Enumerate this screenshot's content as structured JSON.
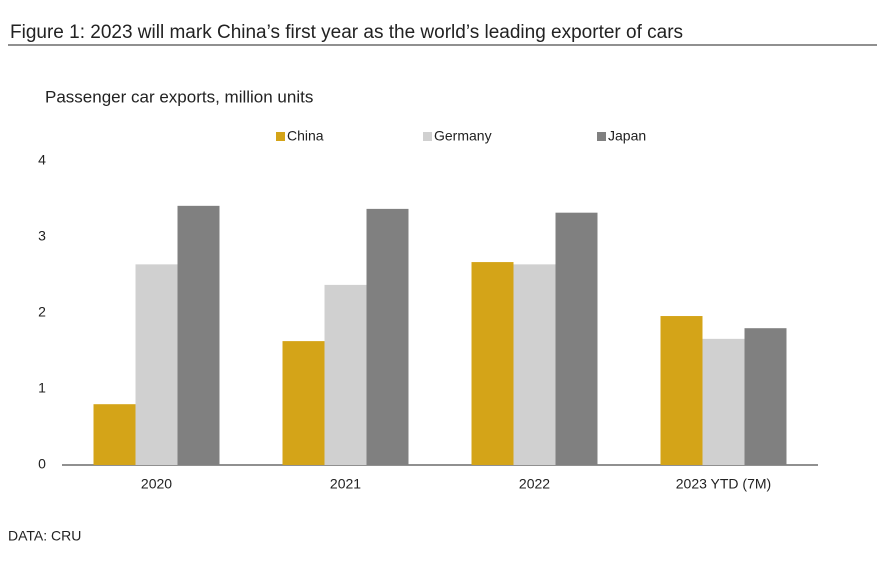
{
  "figure_title": "Figure 1: 2023 will mark China’s first year as the world’s leading exporter of cars",
  "chart_data": {
    "type": "bar",
    "title": "Passenger car exports, million units",
    "categories": [
      "2020",
      "2021",
      "2022",
      "2023 YTD (7M)"
    ],
    "series": [
      {
        "name": "China",
        "color": "#d4a418",
        "values": [
          0.8,
          1.63,
          2.67,
          1.96
        ]
      },
      {
        "name": "Germany",
        "color": "#d0d0d0",
        "values": [
          2.64,
          2.37,
          2.64,
          1.66
        ]
      },
      {
        "name": "Japan",
        "color": "#808080",
        "values": [
          3.41,
          3.37,
          3.32,
          1.8
        ]
      }
    ],
    "ylim": [
      0,
      4
    ],
    "yticks": [
      0,
      1,
      2,
      3,
      4
    ],
    "grid": false,
    "source": "DATA: CRU"
  }
}
